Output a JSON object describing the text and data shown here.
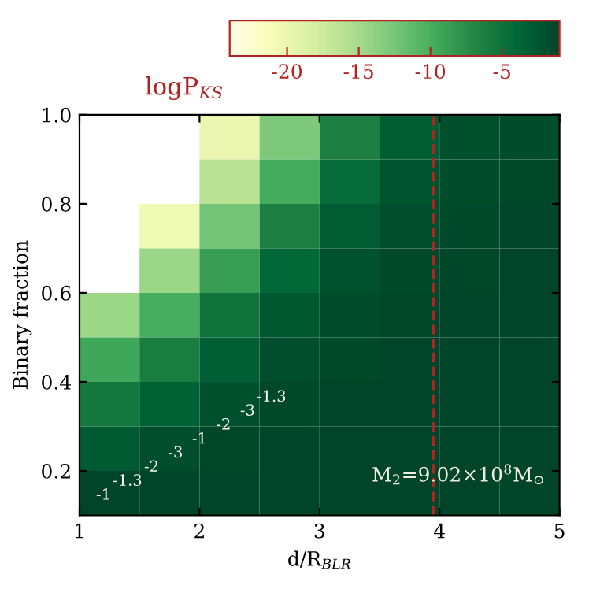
{
  "chart_data": {
    "type": "heatmap",
    "xlabel": "d/R$_{BLR}$",
    "ylabel": "Binary fraction",
    "clabel": "logP$_{KS}$",
    "xlim": [
      1,
      5
    ],
    "ylim": [
      0.1,
      1.0
    ],
    "xticks": [
      1,
      2,
      3,
      4,
      5
    ],
    "yticks": [
      0.2,
      0.4,
      0.6,
      0.8,
      {
        "value": 1.0,
        "label": "1.0"
      }
    ],
    "clim": [
      -24,
      -1
    ],
    "cticks": [
      -20,
      -15,
      -10,
      -5
    ],
    "cells": [
      [
        null,
        null,
        -19.9,
        -12.8,
        -6.3,
        -3.1,
        -1.87,
        -1.67
      ],
      [
        null,
        null,
        -16.1,
        -9.7,
        -4.3,
        -2.25,
        -1.64,
        -1.3
      ],
      [
        null,
        -20.3,
        -12.4,
        -6.2,
        -3.0,
        -1.8,
        -1.42,
        -1.05
      ],
      [
        null,
        -14.4,
        -8.7,
        -4.0,
        -2.0,
        -1.53,
        -1.1,
        -1
      ],
      [
        -14.4,
        -9.9,
        -5.1,
        -2.6,
        -1.65,
        -1.2,
        -1,
        -1
      ],
      [
        -9.3,
        -6.1,
        -3.2,
        -1.77,
        -1.3,
        -1,
        -1,
        -1
      ],
      [
        -5.5,
        -3.4,
        -1.85,
        -1.3,
        -1,
        -1,
        -1,
        -1
      ],
      [
        -2.8,
        -1.76,
        -1.1,
        -1,
        -1,
        -1,
        -1,
        -1
      ],
      [
        -1.0,
        -1,
        -1,
        -1,
        -1,
        -1,
        -1,
        -1
      ]
    ],
    "ref_lines": [
      {
        "axis": "x",
        "value": 3.95,
        "color": "#b22222",
        "line_style": "dashed"
      }
    ],
    "annotations": [
      "-1",
      "-1.3",
      "-2",
      "-3",
      "-1",
      "-2",
      "-3",
      "-1.3",
      "M$_{2}$=9.02×10$^{8}$M$_{⊙}$"
    ],
    "grid": false
  }
}
